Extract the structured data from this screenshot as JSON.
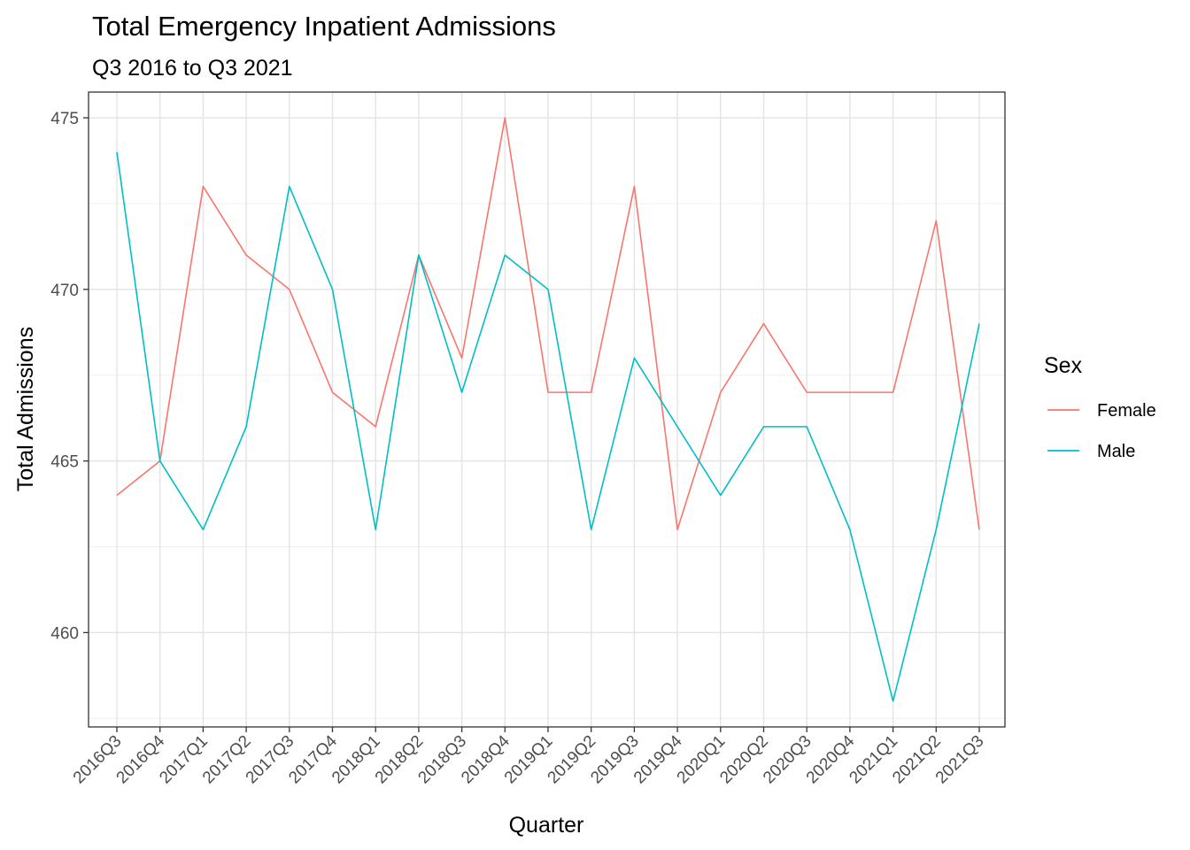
{
  "chart_data": {
    "type": "line",
    "title": "Total Emergency Inpatient Admissions",
    "subtitle": "Q3 2016 to Q3 2021",
    "xlabel": "Quarter",
    "ylabel": "Total Admissions",
    "categories": [
      "2016Q3",
      "2016Q4",
      "2017Q1",
      "2017Q2",
      "2017Q3",
      "2017Q4",
      "2018Q1",
      "2018Q2",
      "2018Q3",
      "2018Q4",
      "2019Q1",
      "2019Q2",
      "2019Q3",
      "2019Q4",
      "2020Q1",
      "2020Q2",
      "2020Q3",
      "2020Q4",
      "2021Q1",
      "2021Q2",
      "2021Q3"
    ],
    "y_ticks": [
      460,
      465,
      470,
      475
    ],
    "ylim": [
      457.25,
      475.75
    ],
    "grid": true,
    "legend": {
      "title": "Sex",
      "position": "right"
    },
    "series": [
      {
        "name": "Female",
        "color": "#F8766D",
        "values": [
          464,
          465,
          473,
          471,
          470,
          467,
          466,
          471,
          468,
          475,
          467,
          467,
          473,
          463,
          467,
          469,
          467,
          467,
          467,
          472,
          463
        ]
      },
      {
        "name": "Male",
        "color": "#00BFC4",
        "values": [
          474,
          465,
          463,
          466,
          473,
          470,
          463,
          471,
          467,
          471,
          470,
          463,
          468,
          466,
          464,
          466,
          466,
          463,
          458,
          463,
          469
        ]
      }
    ]
  }
}
